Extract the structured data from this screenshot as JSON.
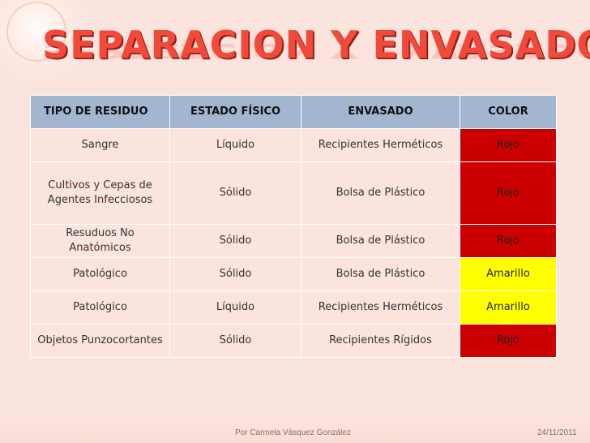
{
  "slide": {
    "title": "SEPARACION Y ENVASADO",
    "footer_author": "Por Carmela Vásquez González",
    "footer_date": "24/11/2011"
  },
  "table": {
    "headers": [
      "TIPO DE RESIDUO",
      "ESTADO FÍSICO",
      "ENVASADO",
      "COLOR"
    ],
    "rows": [
      {
        "tipo": "Sangre",
        "estado": "Líquido",
        "envasado": "Recipientes Herméticos",
        "color": "Rojo"
      },
      {
        "tipo": "Cultivos y Cepas de Agentes Infecciosos",
        "estado": "Sólido",
        "envasado": "Bolsa de Plástico",
        "color": "Rojo"
      },
      {
        "tipo": "Resuduos No Anatómicos",
        "estado": "Sólido",
        "envasado": "Bolsa de Plástico",
        "color": "Rojo"
      },
      {
        "tipo": "Patológico",
        "estado": "Sólido",
        "envasado": "Bolsa de Plástico",
        "color": "Amarillo"
      },
      {
        "tipo": "Patológico",
        "estado": "Líquido",
        "envasado": "Recipientes Herméticos",
        "color": "Amarillo"
      },
      {
        "tipo": "Objetos Punzocortantes",
        "estado": "Sólido",
        "envasado": "Recipientes Rígidos",
        "color": "Rojo"
      }
    ]
  },
  "colors": {
    "rojo": "#cc0000",
    "amarillo": "#ffff00",
    "header_bg": "#a3b6cf",
    "title": "#f14a3a"
  }
}
